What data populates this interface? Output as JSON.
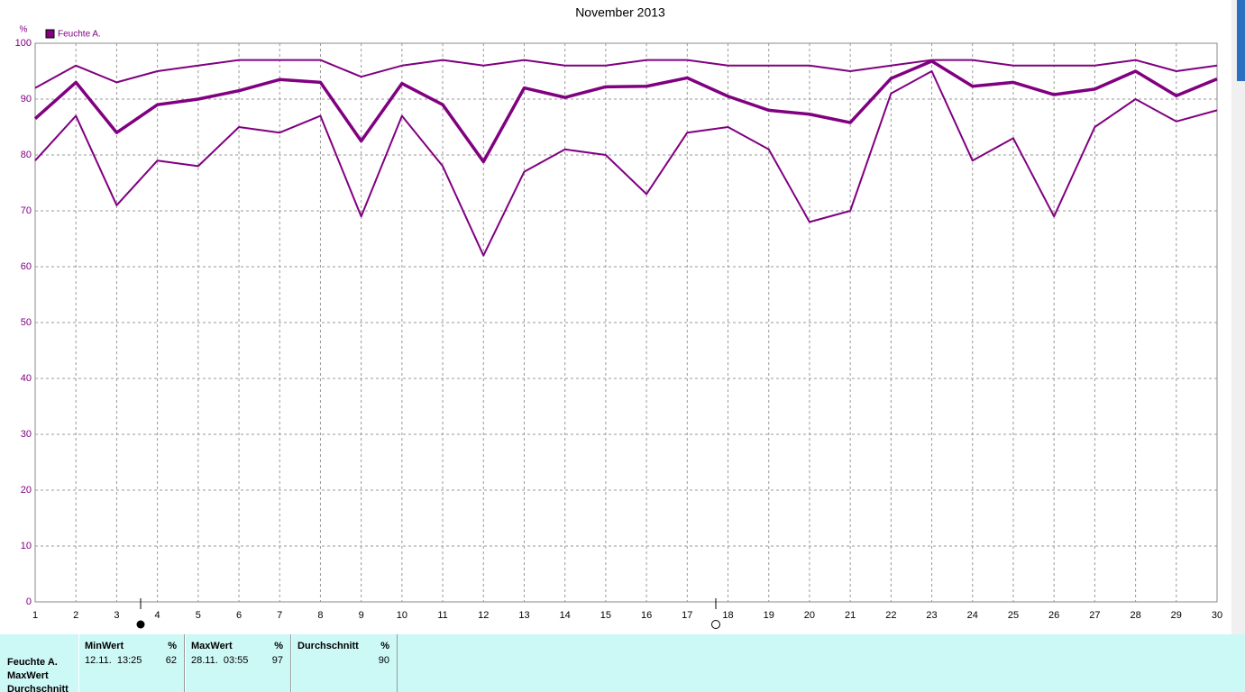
{
  "chart_data": {
    "type": "line",
    "title": "November 2013",
    "ylabel": "%",
    "legend": "Feuchte A.",
    "x": [
      1,
      2,
      3,
      4,
      5,
      6,
      7,
      8,
      9,
      10,
      11,
      12,
      13,
      14,
      15,
      16,
      17,
      18,
      19,
      20,
      21,
      22,
      23,
      24,
      25,
      26,
      27,
      28,
      29,
      30
    ],
    "xlim": [
      1,
      30
    ],
    "ylim": [
      0,
      100
    ],
    "yticks": [
      0,
      10,
      20,
      30,
      40,
      50,
      60,
      70,
      80,
      90,
      100
    ],
    "grid": true,
    "series": [
      {
        "color": "#800080",
        "width": 2,
        "values": [
          92,
          96,
          93,
          95,
          96,
          97,
          97,
          97,
          94,
          96,
          97,
          96,
          97,
          96,
          96,
          97,
          97,
          96,
          96,
          96,
          95,
          96,
          97,
          97,
          96,
          96,
          96,
          97,
          95,
          96
        ]
      },
      {
        "color": "#800080",
        "width": 3.5,
        "values": [
          86.5,
          93,
          84,
          89,
          90,
          91.5,
          93.5,
          93,
          82.5,
          92.8,
          89,
          78.8,
          92,
          90.3,
          92.2,
          92.3,
          93.8,
          90.5,
          88,
          87.3,
          85.8,
          93.7,
          96.8,
          92.3,
          93,
          90.8,
          91.8,
          95,
          90.6,
          93.6
        ]
      },
      {
        "color": "#800080",
        "width": 2,
        "values": [
          79,
          87,
          71,
          79,
          78,
          85,
          84,
          87,
          69,
          87,
          78,
          62,
          77,
          81,
          80,
          73,
          84,
          85,
          81,
          68,
          70,
          91,
          95,
          79,
          83,
          69,
          85,
          90,
          86,
          88
        ]
      }
    ]
  },
  "summary": {
    "row_labels": [
      "Feuchte A.",
      "MaxWert",
      "Durchschnitt"
    ],
    "columns": [
      {
        "header": "MinWert",
        "unit": "%",
        "time": "12.11.  13:25",
        "value": 62
      },
      {
        "header": "MaxWert",
        "unit": "%",
        "time": "28.11.  03:55",
        "value": 97
      },
      {
        "header": "Durchschnitt",
        "unit": "%",
        "value": 90
      }
    ]
  }
}
